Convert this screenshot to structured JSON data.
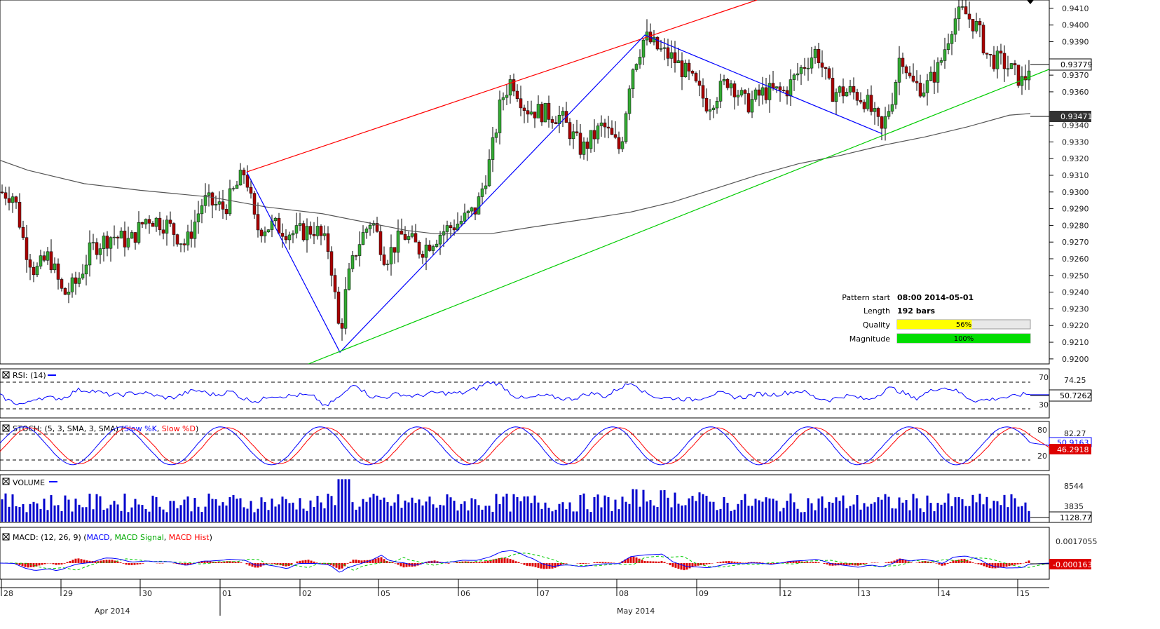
{
  "chart_data": {
    "type": "candlestick",
    "price_axis": {
      "ticks": [
        "0.9410",
        "0.9400",
        "0.9390",
        "0.9370",
        "0.9360",
        "0.9340",
        "0.9330",
        "0.9320",
        "0.9310",
        "0.9300",
        "0.9290",
        "0.9280",
        "0.9270",
        "0.9260",
        "0.9250",
        "0.9240",
        "0.9230",
        "0.9220",
        "0.9210",
        "0.9200"
      ],
      "range": [
        0.9197,
        0.9415
      ],
      "current_price": "0.93779",
      "ma_value": "0.93471"
    },
    "moving_average_200": [
      [
        0,
        0.9319
      ],
      [
        40,
        0.9313
      ],
      [
        120,
        0.9305
      ],
      [
        200,
        0.9301
      ],
      [
        300,
        0.9297
      ],
      [
        380,
        0.9291
      ],
      [
        460,
        0.9287
      ],
      [
        520,
        0.9282
      ],
      [
        580,
        0.9277
      ],
      [
        620,
        0.9275
      ],
      [
        700,
        0.9275
      ],
      [
        760,
        0.9279
      ],
      [
        840,
        0.9284
      ],
      [
        900,
        0.9288
      ],
      [
        960,
        0.9294
      ],
      [
        1020,
        0.9302
      ],
      [
        1080,
        0.931
      ],
      [
        1140,
        0.9317
      ],
      [
        1200,
        0.9322
      ],
      [
        1260,
        0.9328
      ],
      [
        1320,
        0.9333
      ],
      [
        1380,
        0.9339
      ],
      [
        1440,
        0.9346
      ],
      [
        1470,
        0.9347
      ]
    ],
    "price_path": [
      [
        0,
        0.93
      ],
      [
        20,
        0.9298
      ],
      [
        35,
        0.9268
      ],
      [
        50,
        0.9252
      ],
      [
        70,
        0.9262
      ],
      [
        90,
        0.9238
      ],
      [
        110,
        0.9246
      ],
      [
        130,
        0.9266
      ],
      [
        160,
        0.9274
      ],
      [
        185,
        0.927
      ],
      [
        210,
        0.9285
      ],
      [
        240,
        0.928
      ],
      [
        265,
        0.9268
      ],
      [
        290,
        0.9295
      ],
      [
        320,
        0.929
      ],
      [
        350,
        0.9313
      ],
      [
        365,
        0.9278
      ],
      [
        390,
        0.928
      ],
      [
        420,
        0.9275
      ],
      [
        450,
        0.9278
      ],
      [
        470,
        0.9265
      ],
      [
        485,
        0.9213
      ],
      [
        495,
        0.9245
      ],
      [
        510,
        0.9268
      ],
      [
        530,
        0.9284
      ],
      [
        550,
        0.926
      ],
      [
        575,
        0.9275
      ],
      [
        600,
        0.9265
      ],
      [
        630,
        0.9276
      ],
      [
        660,
        0.9283
      ],
      [
        680,
        0.929
      ],
      [
        700,
        0.932
      ],
      [
        715,
        0.9355
      ],
      [
        730,
        0.9368
      ],
      [
        750,
        0.935
      ],
      [
        770,
        0.9348
      ],
      [
        800,
        0.9345
      ],
      [
        830,
        0.9325
      ],
      [
        860,
        0.934
      ],
      [
        885,
        0.9325
      ],
      [
        900,
        0.9372
      ],
      [
        920,
        0.9393
      ],
      [
        940,
        0.9385
      ],
      [
        960,
        0.938
      ],
      [
        985,
        0.9368
      ],
      [
        1010,
        0.9352
      ],
      [
        1040,
        0.9368
      ],
      [
        1065,
        0.9352
      ],
      [
        1090,
        0.936
      ],
      [
        1120,
        0.936
      ],
      [
        1145,
        0.9375
      ],
      [
        1165,
        0.9385
      ],
      [
        1185,
        0.936
      ],
      [
        1215,
        0.936
      ],
      [
        1235,
        0.9355
      ],
      [
        1258,
        0.9336
      ],
      [
        1275,
        0.936
      ],
      [
        1285,
        0.9385
      ],
      [
        1300,
        0.9365
      ],
      [
        1320,
        0.9362
      ],
      [
        1340,
        0.9375
      ],
      [
        1360,
        0.9403
      ],
      [
        1375,
        0.9408
      ],
      [
        1395,
        0.9398
      ],
      [
        1410,
        0.938
      ],
      [
        1430,
        0.9378
      ],
      [
        1450,
        0.937
      ],
      [
        1460,
        0.9365
      ],
      [
        1470,
        0.9378
      ]
    ],
    "pattern_lines": {
      "red": [
        [
          352,
          0.9312
        ],
        [
          1080,
          0.9415
        ]
      ],
      "blue_zigzag": [
        [
          352,
          0.9312
        ],
        [
          485,
          0.9204
        ],
        [
          920,
          0.9394
        ],
        [
          1258,
          0.9335
        ]
      ],
      "green": [
        [
          440,
          0.9197
        ],
        [
          1500,
          0.9374
        ]
      ]
    },
    "pattern_info": {
      "pattern_start_label": "Pattern start",
      "pattern_start_value": "08:00 2014-05-01",
      "length_label": "Length",
      "length_value": "192 bars",
      "quality_label": "Quality",
      "quality_value": "56%",
      "quality_fraction": 0.56,
      "magnitude_label": "Magnitude",
      "magnitude_value": "100%",
      "magnitude_fraction": 1.0
    },
    "rsi": {
      "title": "RSI: (14)",
      "levels": [
        "70",
        "30"
      ],
      "upper_value": "74.25",
      "current": "50.7262",
      "range": [
        20,
        85
      ]
    },
    "stoch": {
      "title_prefix": "STOCH: (5, 3, SMA, 3, SMA) (",
      "k_label": "Slow %K",
      "separator": ", ",
      "d_label": "Slow %D",
      "title_suffix": ")",
      "levels": [
        "80",
        "20"
      ],
      "upper_value": "82.27",
      "current_k": "50.9163",
      "current_d": "46.2918",
      "range": [
        0,
        100
      ]
    },
    "volume": {
      "title": "VOLUME",
      "ticks": [
        "8544",
        "3835"
      ],
      "current": "1128.77",
      "max": 9500
    },
    "macd": {
      "title_prefix": "MACD: (12, 26, 9) (",
      "macd_label": "MACD",
      "separator": ", ",
      "signal_label": "MACD Signal",
      "hist_label": "MACD Hist",
      "title_suffix": ")",
      "upper_value": "0.0017055",
      "current": "-0.0001638"
    },
    "time_axis": {
      "day_labels": [
        "28",
        "29",
        "30",
        "01",
        "02",
        "05",
        "06",
        "07",
        "08",
        "09",
        "12",
        "13",
        "14",
        "15"
      ],
      "month_labels": [
        "Apr 2014",
        "May 2014"
      ]
    }
  },
  "colors": {
    "red_line": "#ff0000",
    "blue_line": "#0000ff",
    "green_line": "#00cc00",
    "ma_line": "#555555",
    "candle_up": "#33aa33",
    "candle_down": "#aa0000",
    "volume": "#0000cc",
    "quality_fill": "#ffff00",
    "magnitude_fill": "#00dd00",
    "macd_line": "#0000ff",
    "signal_line": "#00cc00",
    "hist": "#dd0000"
  }
}
